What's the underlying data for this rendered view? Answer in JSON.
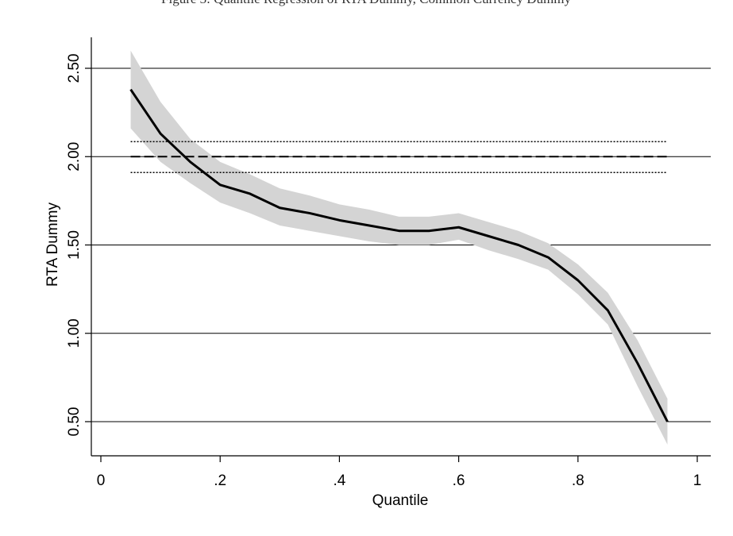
{
  "chart_data": {
    "type": "line",
    "caption": "Figure 3: Quantile Regression of RTA Dummy, Common Currency Dummy",
    "xlabel": "Quantile",
    "ylabel": "RTA Dummy",
    "xlim": [
      0,
      1
    ],
    "ylim": [
      0.35,
      2.68
    ],
    "x_ticks": [
      {
        "value": 0,
        "label": "0"
      },
      {
        "value": 0.2,
        "label": ".2"
      },
      {
        "value": 0.4,
        "label": ".4"
      },
      {
        "value": 0.6,
        "label": ".6"
      },
      {
        "value": 0.8,
        "label": ".8"
      },
      {
        "value": 1,
        "label": "1"
      }
    ],
    "y_ticks": [
      {
        "value": 0.5,
        "label": "0.50"
      },
      {
        "value": 1.0,
        "label": "1.00"
      },
      {
        "value": 1.5,
        "label": "1.50"
      },
      {
        "value": 2.0,
        "label": "2.00"
      },
      {
        "value": 2.5,
        "label": "2.50"
      }
    ],
    "grid": "horizontal",
    "x": [
      0.05,
      0.1,
      0.15,
      0.2,
      0.25,
      0.3,
      0.35,
      0.4,
      0.45,
      0.5,
      0.55,
      0.6,
      0.65,
      0.7,
      0.75,
      0.8,
      0.85,
      0.9,
      0.95
    ],
    "series": [
      {
        "style": "solid",
        "values": [
          2.38,
          2.13,
          1.97,
          1.84,
          1.79,
          1.71,
          1.68,
          1.64,
          1.61,
          1.58,
          1.58,
          1.6,
          1.55,
          1.5,
          1.43,
          1.3,
          1.13,
          0.83,
          0.5
        ],
        "ci_lower": [
          2.16,
          1.97,
          1.85,
          1.74,
          1.68,
          1.61,
          1.58,
          1.55,
          1.52,
          1.5,
          1.5,
          1.53,
          1.47,
          1.42,
          1.36,
          1.22,
          1.05,
          0.7,
          0.37
        ],
        "ci_upper": [
          2.6,
          2.31,
          2.1,
          1.97,
          1.9,
          1.82,
          1.78,
          1.73,
          1.7,
          1.66,
          1.66,
          1.68,
          1.63,
          1.58,
          1.51,
          1.39,
          1.23,
          0.96,
          0.63
        ]
      }
    ],
    "reference_lines": [
      {
        "style": "dashed",
        "value": 2.0
      },
      {
        "style": "dotted",
        "value": 2.085
      },
      {
        "style": "dotted",
        "value": 1.91
      }
    ],
    "colors": {
      "line": "#000000",
      "ci_band": "#d4d4d4",
      "grid": "#000000"
    }
  }
}
